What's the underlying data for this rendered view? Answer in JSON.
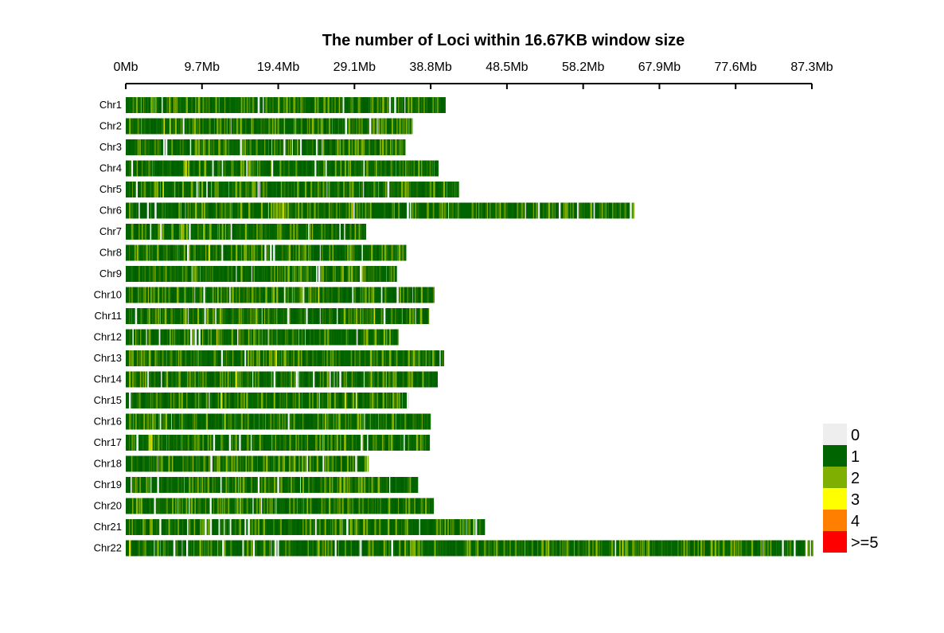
{
  "chart_data": {
    "type": "heatmap",
    "title": "The number of Loci within 16.67KB window size",
    "x_axis": {
      "unit": "Mb",
      "range_mb": [
        0,
        87.3
      ],
      "tick_labels": [
        "0Mb",
        "9.7Mb",
        "19.4Mb",
        "29.1Mb",
        "38.8Mb",
        "48.5Mb",
        "58.2Mb",
        "67.9Mb",
        "77.6Mb",
        "87.3Mb"
      ],
      "tick_values_mb": [
        0,
        9.7,
        19.4,
        29.1,
        38.8,
        48.5,
        58.2,
        67.9,
        77.6,
        87.3
      ]
    },
    "chromosomes": [
      {
        "name": "Chr1",
        "length_mb": 40.7,
        "gaps_mb": []
      },
      {
        "name": "Chr2",
        "length_mb": 36.5,
        "gaps_mb": []
      },
      {
        "name": "Chr3",
        "length_mb": 35.6,
        "gaps_mb": []
      },
      {
        "name": "Chr4",
        "length_mb": 39.8,
        "gaps_mb": [
          0.8
        ]
      },
      {
        "name": "Chr5",
        "length_mb": 42.4,
        "gaps_mb": [
          1.4
        ]
      },
      {
        "name": "Chr6",
        "length_mb": 64.7,
        "gaps_mb": [
          35.9
        ]
      },
      {
        "name": "Chr7",
        "length_mb": 30.6,
        "gaps_mb": []
      },
      {
        "name": "Chr8",
        "length_mb": 35.8,
        "gaps_mb": [
          7.9
        ]
      },
      {
        "name": "Chr9",
        "length_mb": 34.5,
        "gaps_mb": [
          29.9
        ]
      },
      {
        "name": "Chr10",
        "length_mb": 39.3,
        "gaps_mb": []
      },
      {
        "name": "Chr11",
        "length_mb": 38.6,
        "gaps_mb": []
      },
      {
        "name": "Chr12",
        "length_mb": 34.7,
        "gaps_mb": [
          8.3
        ]
      },
      {
        "name": "Chr13",
        "length_mb": 40.5,
        "gaps_mb": []
      },
      {
        "name": "Chr14",
        "length_mb": 39.7,
        "gaps_mb": [
          21.8
        ]
      },
      {
        "name": "Chr15",
        "length_mb": 36.0,
        "gaps_mb": []
      },
      {
        "name": "Chr16",
        "length_mb": 38.8,
        "gaps_mb": []
      },
      {
        "name": "Chr17",
        "length_mb": 38.7,
        "gaps_mb": [
          30.0
        ]
      },
      {
        "name": "Chr18",
        "length_mb": 30.9,
        "gaps_mb": [
          29.3
        ]
      },
      {
        "name": "Chr19",
        "length_mb": 37.2,
        "gaps_mb": [
          4.1,
          16.9
        ]
      },
      {
        "name": "Chr20",
        "length_mb": 39.2,
        "gaps_mb": [
          3.7,
          10.8
        ]
      },
      {
        "name": "Chr21",
        "length_mb": 45.7,
        "gaps_mb": [
          4.4
        ]
      },
      {
        "name": "Chr22",
        "length_mb": 87.5,
        "gaps_mb": [
          7.8,
          16.3,
          26.7,
          33.9,
          83.6,
          85.1,
          86.6
        ]
      }
    ],
    "legend": {
      "placement": "bottom-right",
      "items": [
        {
          "label": "0",
          "color": "#EEEEEE"
        },
        {
          "label": "1",
          "color": "#006400"
        },
        {
          "label": "2",
          "color": "#7FAF00"
        },
        {
          "label": "3",
          "color": "#FFFF00"
        },
        {
          "label": "4",
          "color": "#FF7F00"
        },
        {
          "label": ">=5",
          "color": "#FF0000"
        }
      ]
    },
    "dominant_colors": {
      "low": "#006400",
      "mid": "#7FAF00",
      "high": "#FFFF00"
    }
  }
}
